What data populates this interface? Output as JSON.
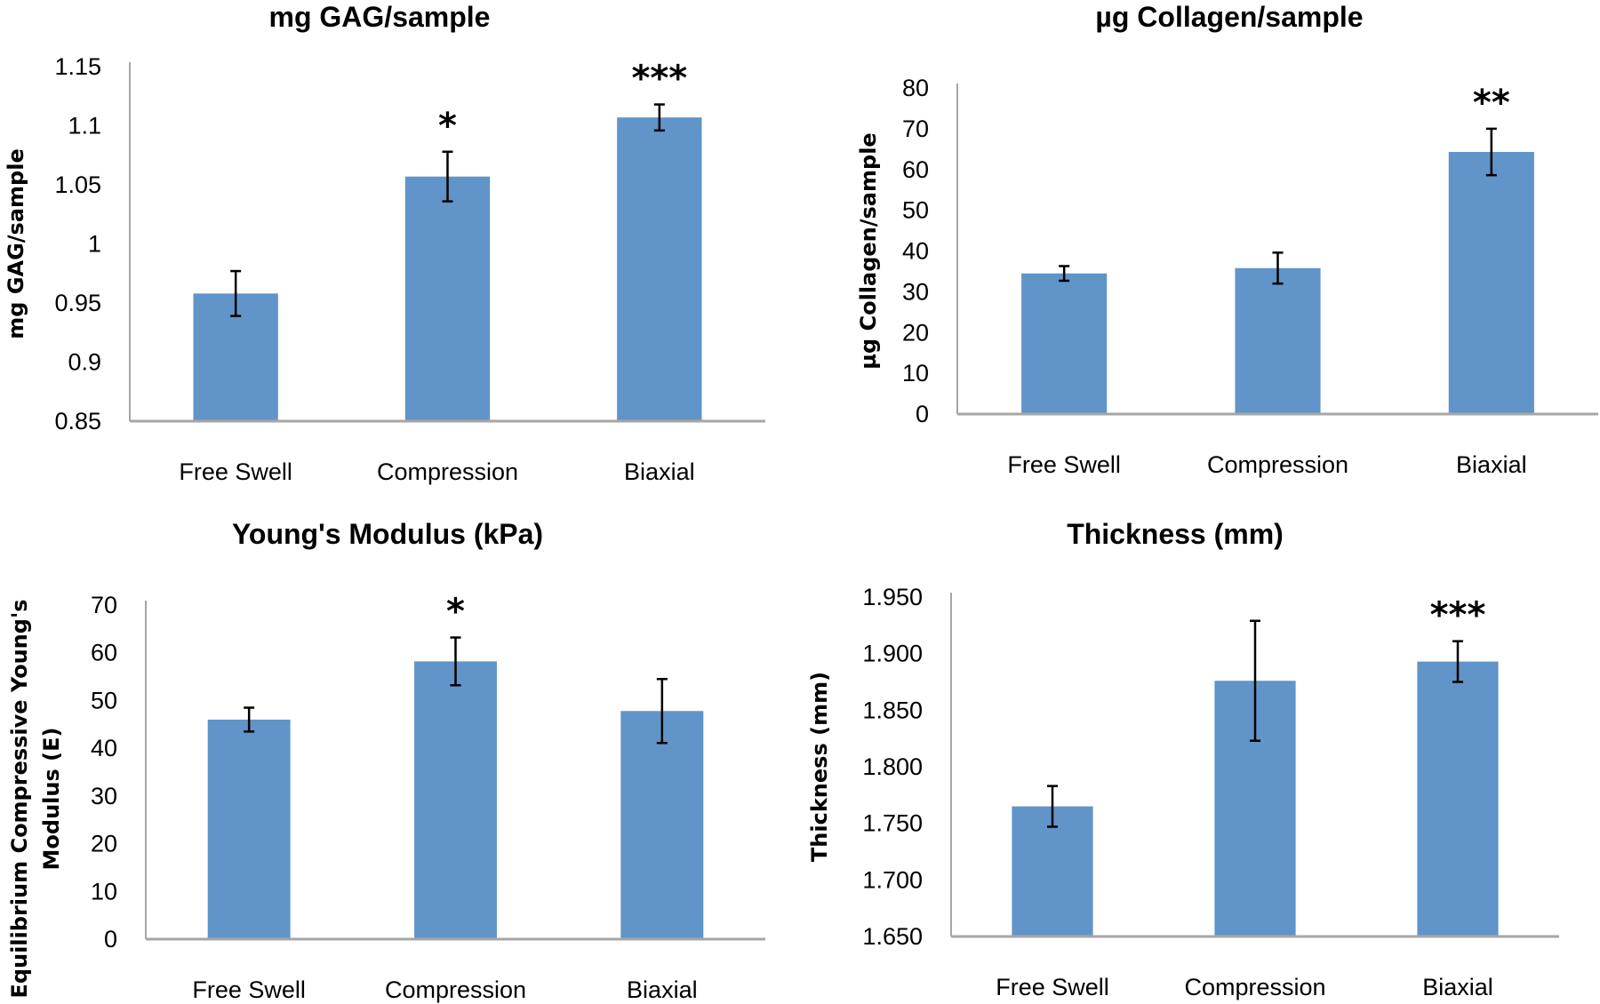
{
  "colors": {
    "bar": "#6194c8",
    "axis": "#a6a6a6",
    "error_bar": "#000000"
  },
  "chart_data": [
    {
      "type": "bar",
      "title": "mg GAG/sample",
      "ylabel": "mg GAG/sample",
      "categories": [
        "Free Swell",
        "Compression",
        "Biaxial"
      ],
      "values": [
        0.958,
        1.057,
        1.107
      ],
      "errors": [
        0.019,
        0.021,
        0.011
      ],
      "significance": [
        "",
        "*",
        "***"
      ],
      "ylim": [
        0.85,
        1.15
      ],
      "yticks": [
        "0.85",
        "0.9",
        "0.95",
        "1",
        "1.05",
        "1.1",
        "1.15"
      ],
      "grid": false
    },
    {
      "type": "bar",
      "title": "µg Collagen/sample",
      "ylabel": "µg Collagen/sample",
      "categories": [
        "Free Swell",
        "Compression",
        "Biaxial"
      ],
      "values": [
        34.5,
        35.8,
        64.3
      ],
      "errors": [
        1.8,
        3.8,
        5.7
      ],
      "significance": [
        "",
        "",
        "**"
      ],
      "ylim": [
        0,
        80
      ],
      "yticks": [
        "0",
        "10",
        "20",
        "30",
        "40",
        "50",
        "60",
        "70",
        "80"
      ],
      "grid": false
    },
    {
      "type": "bar",
      "title": "Young's Modulus (kPa)",
      "ylabel": "Equilibrium Compressive Young's Modulus (E)",
      "ylabel_lines": [
        "Equilibrium Compressive Young's",
        "Modulus (E)"
      ],
      "categories": [
        "Free Swell",
        "Compression",
        "Biaxial"
      ],
      "values": [
        46.0,
        58.2,
        47.8
      ],
      "errors": [
        2.5,
        5.0,
        6.7
      ],
      "significance": [
        "",
        "*",
        ""
      ],
      "ylim": [
        0,
        70
      ],
      "yticks": [
        "0",
        "10",
        "20",
        "30",
        "40",
        "50",
        "60",
        "70"
      ],
      "grid": false
    },
    {
      "type": "bar",
      "title": "Thickness (mm)",
      "ylabel": "Thickness (mm)",
      "categories": [
        "Free Swell",
        "Compression",
        "Biaxial"
      ],
      "values": [
        1.765,
        1.876,
        1.893
      ],
      "errors": [
        0.018,
        0.053,
        0.018
      ],
      "significance": [
        "",
        "",
        "***"
      ],
      "ylim": [
        1.65,
        1.95
      ],
      "yticks": [
        "1.650",
        "1.700",
        "1.750",
        "1.800",
        "1.850",
        "1.900",
        "1.950"
      ],
      "grid": false
    }
  ]
}
